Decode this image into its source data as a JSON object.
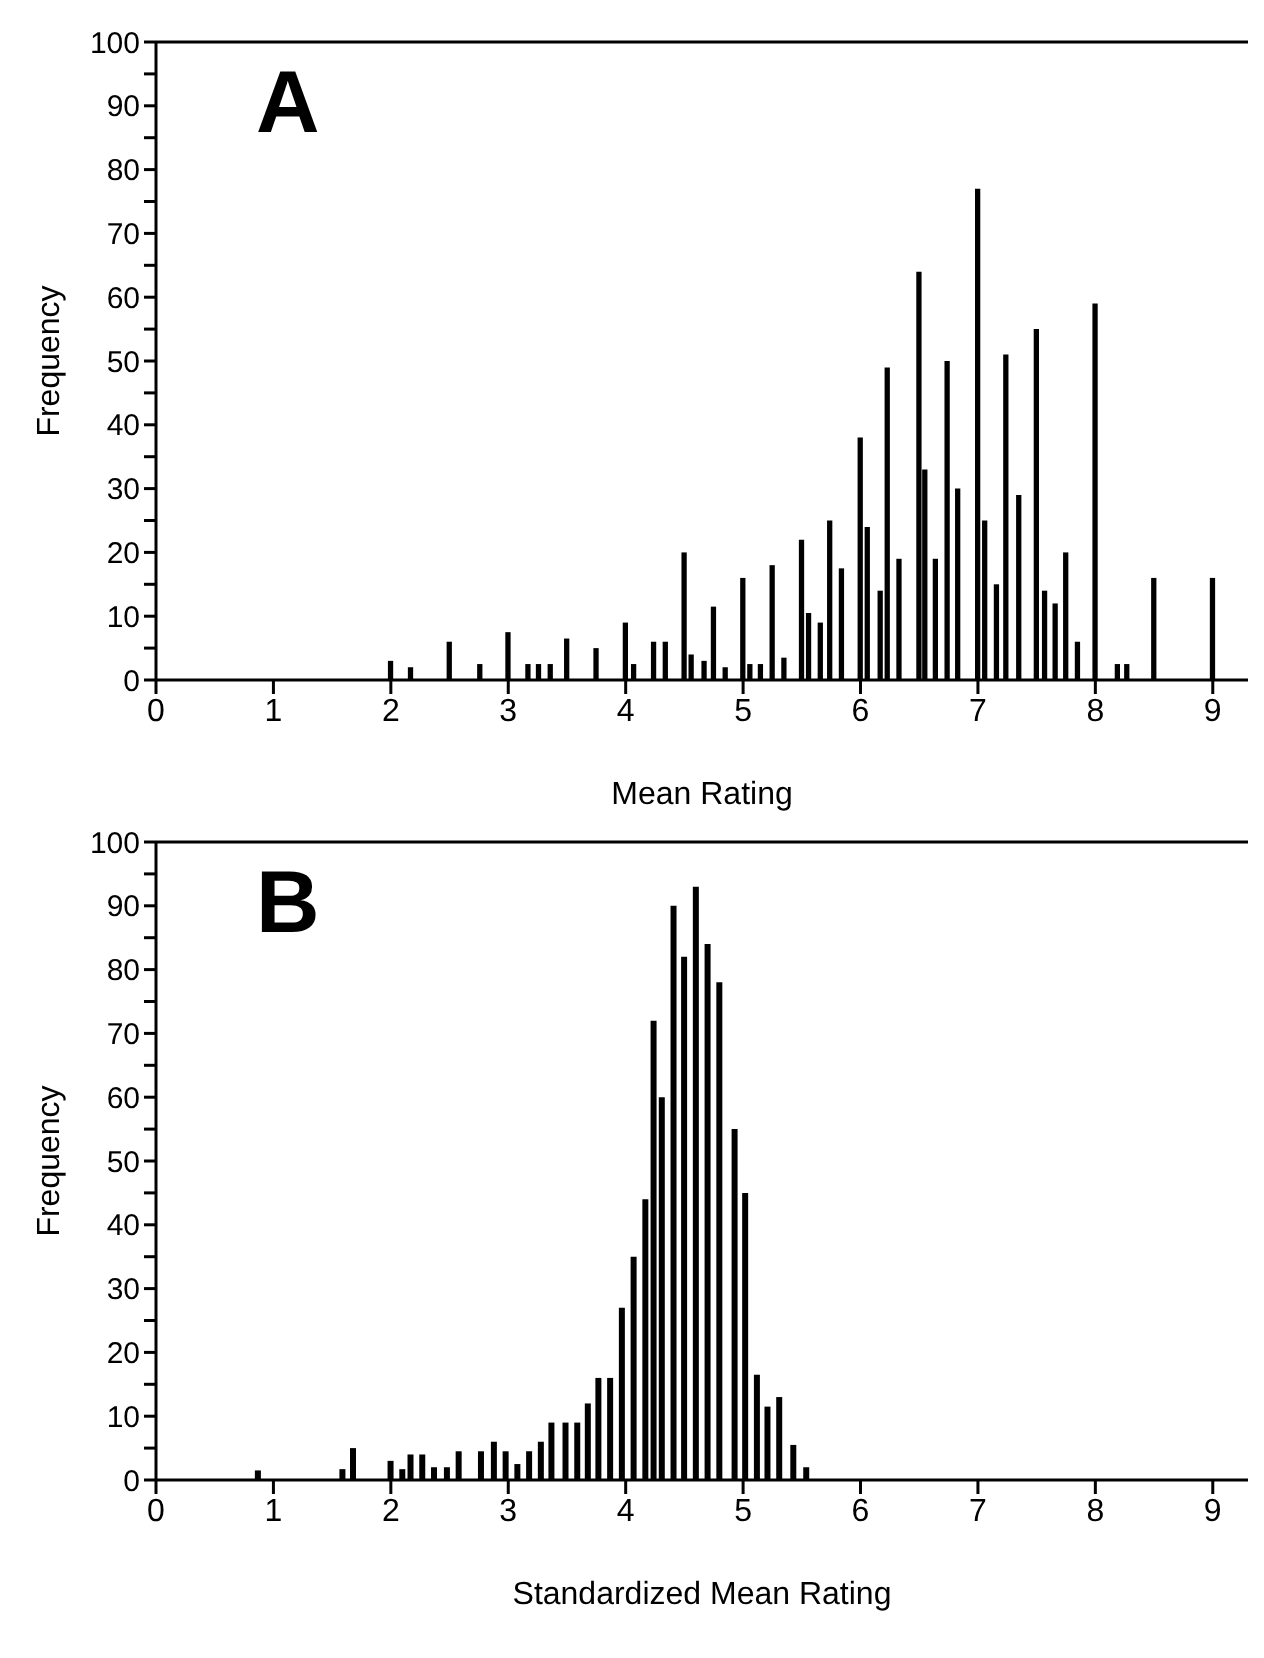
{
  "chart_data": [
    {
      "type": "bar",
      "title": "A",
      "xlabel": "Mean Rating",
      "ylabel": "Frequency",
      "x": [
        2.0,
        2.17,
        2.5,
        2.76,
        3.0,
        3.17,
        3.26,
        3.36,
        3.5,
        3.75,
        4.0,
        4.07,
        4.24,
        4.34,
        4.5,
        4.56,
        4.67,
        4.75,
        4.85,
        5.0,
        5.06,
        5.15,
        5.25,
        5.35,
        5.5,
        5.56,
        5.66,
        5.74,
        5.84,
        6.0,
        6.06,
        6.17,
        6.23,
        6.33,
        6.5,
        6.55,
        6.64,
        6.74,
        6.83,
        7.0,
        7.06,
        7.16,
        7.24,
        7.35,
        7.5,
        7.57,
        7.66,
        7.75,
        7.85,
        8.0,
        8.19,
        8.27,
        8.5,
        9.0
      ],
      "series": [
        {
          "color": "#000000",
          "values": [
            3,
            2,
            6,
            2.5,
            7.5,
            2.5,
            2.5,
            2.5,
            6.5,
            5,
            9,
            2.5,
            6,
            6,
            20,
            4,
            3,
            11.5,
            2,
            16,
            2.5,
            2.5,
            18,
            3.5,
            22,
            10.5,
            9,
            25,
            17.5,
            38,
            24,
            14,
            49,
            19,
            64,
            33,
            19,
            50,
            30,
            77,
            25,
            15,
            51,
            29,
            55,
            14,
            12,
            20,
            6,
            59,
            2.5,
            2.5,
            16,
            16
          ]
        }
      ],
      "xlim": [
        0,
        9.3
      ],
      "xticks": [
        0,
        1,
        2,
        3,
        4,
        5,
        6,
        7,
        8,
        9
      ],
      "ylim": [
        0,
        100
      ],
      "yticks": [
        0,
        {
          "value": 5,
          "label": null
        },
        10,
        {
          "value": 15,
          "label": null
        },
        20,
        {
          "value": 25,
          "label": null
        },
        30,
        {
          "value": 35,
          "label": null
        },
        40,
        {
          "value": 45,
          "label": null
        },
        50,
        {
          "value": 55,
          "label": null
        },
        60,
        {
          "value": 65,
          "label": null
        },
        70,
        {
          "value": 75,
          "label": null
        },
        80,
        {
          "value": 85,
          "label": null
        },
        90,
        {
          "value": 95,
          "label": null
        },
        100
      ],
      "grid": false,
      "legend": false
    },
    {
      "type": "bar",
      "title": "B",
      "xlabel": "Standardized Mean Rating",
      "ylabel": "Frequency",
      "x": [
        0.86,
        1.58,
        1.67,
        1.99,
        2.09,
        2.16,
        2.26,
        2.36,
        2.47,
        2.57,
        2.76,
        2.87,
        2.97,
        3.07,
        3.17,
        3.27,
        3.36,
        3.48,
        3.58,
        3.67,
        3.76,
        3.86,
        3.96,
        4.06,
        4.16,
        4.23,
        4.3,
        4.4,
        4.49,
        4.59,
        4.69,
        4.79,
        4.92,
        5.01,
        5.11,
        5.2,
        5.3,
        5.42,
        5.53
      ],
      "series": [
        {
          "color": "#000000",
          "values": [
            1.5,
            1.7,
            5,
            3,
            1.7,
            4,
            4,
            2,
            2,
            4.5,
            4.5,
            6,
            4.5,
            2.5,
            4.5,
            6,
            9,
            9,
            9,
            12,
            16,
            16,
            27,
            35,
            44,
            72,
            60,
            90,
            82,
            93,
            84,
            78,
            55,
            45,
            16.5,
            11.5,
            13,
            5.5,
            2
          ]
        }
      ],
      "xlim": [
        0,
        9.3
      ],
      "xticks": [
        0,
        1,
        2,
        3,
        4,
        5,
        6,
        7,
        8,
        9
      ],
      "ylim": [
        0,
        100
      ],
      "yticks": [
        0,
        {
          "value": 5,
          "label": null
        },
        10,
        {
          "value": 15,
          "label": null
        },
        20,
        {
          "value": 25,
          "label": null
        },
        30,
        {
          "value": 35,
          "label": null
        },
        40,
        {
          "value": 45,
          "label": null
        },
        50,
        {
          "value": 55,
          "label": null
        },
        60,
        {
          "value": 65,
          "label": null
        },
        70,
        {
          "value": 75,
          "label": null
        },
        80,
        {
          "value": 85,
          "label": null
        },
        90,
        {
          "value": 95,
          "label": null
        },
        100
      ],
      "grid": false,
      "legend": false
    }
  ]
}
